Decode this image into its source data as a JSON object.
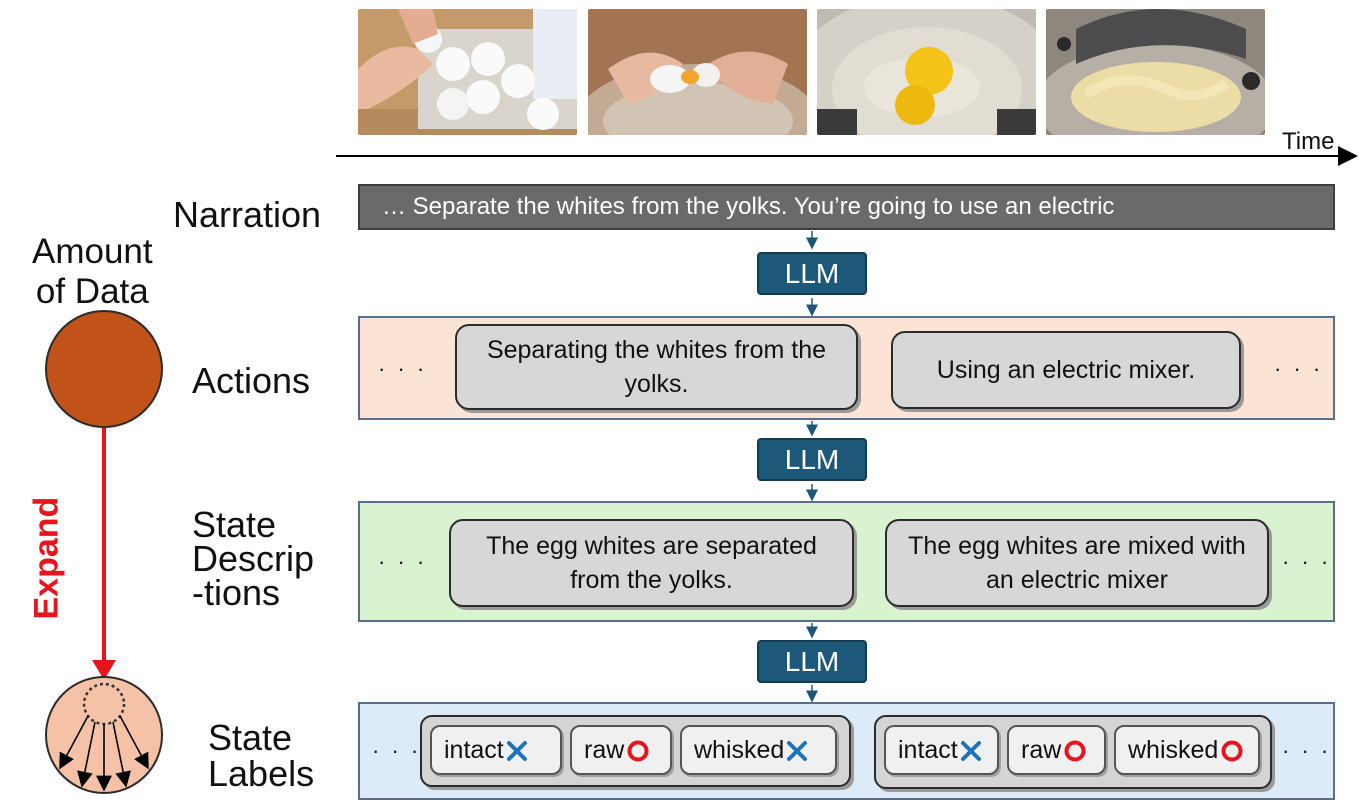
{
  "time_label": "Time",
  "rows": {
    "narration": "Narration",
    "actions": "Actions",
    "state_descriptions": [
      "State",
      "Descrip",
      "-tions"
    ],
    "state_labels": [
      "State",
      "Labels"
    ]
  },
  "amount_of_data": [
    "Amount",
    "of Data"
  ],
  "expand": "Expand",
  "narration_text": "… Separate the whites from the yolks. You’re going to use an electric",
  "llm": "LLM",
  "ellipsis": "· · ·",
  "actions": [
    "Separating the whites from the yolks.",
    "Using an electric mixer."
  ],
  "state_descriptions": [
    "The egg whites are separated from the yolks.",
    "The egg whites are mixed with an electric mixer"
  ],
  "label_groups": [
    [
      {
        "label": "intact",
        "mark": "cross"
      },
      {
        "label": "raw",
        "mark": "circle"
      },
      {
        "label": "whisked",
        "mark": "cross"
      }
    ],
    [
      {
        "label": "intact",
        "mark": "cross"
      },
      {
        "label": "raw",
        "mark": "circle"
      },
      {
        "label": "whisked",
        "mark": "circle"
      }
    ]
  ],
  "photos": [
    "hand-taking-egg-from-carton",
    "hands-cracking-egg-over-bowl",
    "egg-yolks-in-steel-bowl",
    "electric-mixer-whisking-egg-whites"
  ],
  "colors": {
    "narration_bar": "#6a6a6a",
    "llm_box": "#1e5878",
    "actions_panel": "#fbe3d6",
    "states_panel": "#d9f2d0",
    "labels_panel": "#dcebf7",
    "data_circle": "#c0521a",
    "expanded_circle": "#f5c2a8",
    "expand_arrow": "#e8141b",
    "cross_mark": "#1f73b7",
    "circle_mark": "#e8141b"
  }
}
